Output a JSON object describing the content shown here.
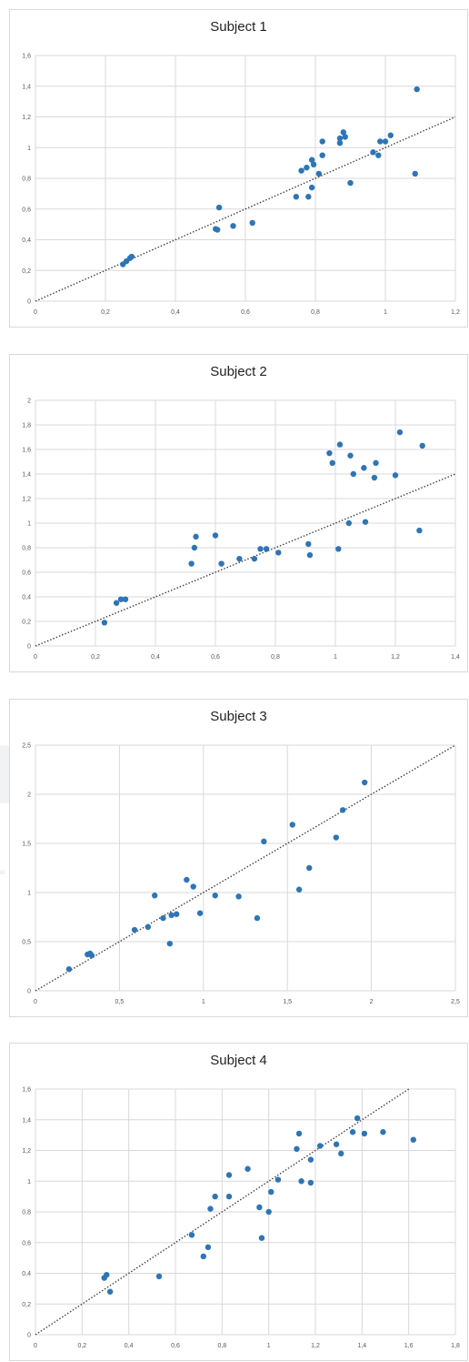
{
  "colors": {
    "point": "#2e75b6",
    "grid": "#d9d9d9",
    "diagonal": "#444444",
    "axis_text": "#595959"
  },
  "watermark": {
    "line1": "PRESS",
    "line2": "LOGY PUBLICATIONS"
  },
  "chart_data": [
    {
      "type": "scatter",
      "title": "Subject 1",
      "xlim": [
        0,
        1.2
      ],
      "ylim": [
        0,
        1.6
      ],
      "xticks": [
        "0",
        "0,2",
        "0,4",
        "0,6",
        "0,8",
        "1",
        "1,2"
      ],
      "yticks": [
        "0",
        "0,2",
        "0,4",
        "0,6",
        "0,8",
        "1",
        "1,2",
        "1,4",
        "1,6"
      ],
      "reference_line": "y = x",
      "grid": true,
      "points": [
        [
          0.25,
          0.24
        ],
        [
          0.26,
          0.26
        ],
        [
          0.27,
          0.28
        ],
        [
          0.275,
          0.29
        ],
        [
          0.515,
          0.47
        ],
        [
          0.52,
          0.465
        ],
        [
          0.525,
          0.61
        ],
        [
          0.565,
          0.49
        ],
        [
          0.62,
          0.51
        ],
        [
          0.745,
          0.68
        ],
        [
          0.76,
          0.85
        ],
        [
          0.775,
          0.87
        ],
        [
          0.78,
          0.68
        ],
        [
          0.79,
          0.92
        ],
        [
          0.79,
          0.74
        ],
        [
          0.795,
          0.89
        ],
        [
          0.81,
          0.83
        ],
        [
          0.82,
          1.04
        ],
        [
          0.82,
          0.95
        ],
        [
          0.87,
          1.06
        ],
        [
          0.87,
          1.03
        ],
        [
          0.88,
          1.1
        ],
        [
          0.885,
          1.07
        ],
        [
          0.9,
          0.77
        ],
        [
          0.965,
          0.97
        ],
        [
          0.98,
          0.95
        ],
        [
          0.985,
          1.04
        ],
        [
          1.0,
          1.04
        ],
        [
          1.015,
          1.08
        ],
        [
          1.085,
          0.83
        ],
        [
          1.09,
          1.38
        ]
      ]
    },
    {
      "type": "scatter",
      "title": "Subject 2",
      "xlim": [
        0,
        1.4
      ],
      "ylim": [
        0,
        2.0
      ],
      "xticks": [
        "0",
        "0,2",
        "0,4",
        "0,6",
        "0,8",
        "1",
        "1,2",
        "1,4"
      ],
      "yticks": [
        "0",
        "0,2",
        "0,4",
        "0,6",
        "0,8",
        "1",
        "1,2",
        "1,4",
        "1,6",
        "1,8",
        "2"
      ],
      "reference_line": "y = x",
      "grid": true,
      "points": [
        [
          0.23,
          0.19
        ],
        [
          0.27,
          0.35
        ],
        [
          0.285,
          0.38
        ],
        [
          0.3,
          0.38
        ],
        [
          0.52,
          0.67
        ],
        [
          0.53,
          0.8
        ],
        [
          0.535,
          0.89
        ],
        [
          0.6,
          0.9
        ],
        [
          0.62,
          0.67
        ],
        [
          0.68,
          0.71
        ],
        [
          0.73,
          0.71
        ],
        [
          0.75,
          0.79
        ],
        [
          0.77,
          0.79
        ],
        [
          0.81,
          0.76
        ],
        [
          0.91,
          0.83
        ],
        [
          0.915,
          0.74
        ],
        [
          0.98,
          1.57
        ],
        [
          0.99,
          1.49
        ],
        [
          1.01,
          0.79
        ],
        [
          1.015,
          1.64
        ],
        [
          1.045,
          1.0
        ],
        [
          1.05,
          1.55
        ],
        [
          1.06,
          1.4
        ],
        [
          1.095,
          1.45
        ],
        [
          1.1,
          1.01
        ],
        [
          1.13,
          1.37
        ],
        [
          1.135,
          1.49
        ],
        [
          1.2,
          1.39
        ],
        [
          1.215,
          1.74
        ],
        [
          1.28,
          0.94
        ],
        [
          1.29,
          1.63
        ]
      ]
    },
    {
      "type": "scatter",
      "title": "Subject 3",
      "xlim": [
        0,
        2.5
      ],
      "ylim": [
        0,
        2.5
      ],
      "xticks": [
        "0",
        "0,5",
        "1",
        "1,5",
        "2",
        "2,5"
      ],
      "yticks": [
        "0",
        "0,5",
        "1",
        "1,5",
        "2",
        "2,5"
      ],
      "reference_line": "y = x",
      "grid": true,
      "points": [
        [
          0.2,
          0.22
        ],
        [
          0.31,
          0.37
        ],
        [
          0.325,
          0.38
        ],
        [
          0.335,
          0.36
        ],
        [
          0.59,
          0.62
        ],
        [
          0.67,
          0.65
        ],
        [
          0.71,
          0.97
        ],
        [
          0.76,
          0.74
        ],
        [
          0.8,
          0.48
        ],
        [
          0.81,
          0.77
        ],
        [
          0.84,
          0.78
        ],
        [
          0.9,
          1.13
        ],
        [
          0.94,
          1.06
        ],
        [
          0.98,
          0.79
        ],
        [
          1.07,
          0.97
        ],
        [
          1.21,
          0.96
        ],
        [
          1.32,
          0.74
        ],
        [
          1.36,
          1.52
        ],
        [
          1.53,
          1.69
        ],
        [
          1.57,
          1.03
        ],
        [
          1.63,
          1.25
        ],
        [
          1.79,
          1.56
        ],
        [
          1.83,
          1.84
        ],
        [
          1.96,
          2.12
        ]
      ]
    },
    {
      "type": "scatter",
      "title": "Subject 4",
      "xlim": [
        0,
        1.8
      ],
      "ylim": [
        0,
        1.6
      ],
      "xticks": [
        "0",
        "0,2",
        "0,4",
        "0,6",
        "0,8",
        "1",
        "1,2",
        "1,4",
        "1,6",
        "1,8"
      ],
      "yticks": [
        "0",
        "0,2",
        "0,4",
        "0,6",
        "0,8",
        "1",
        "1,2",
        "1,4",
        "1,6"
      ],
      "reference_line": "y = x",
      "grid": true,
      "points": [
        [
          0.295,
          0.37
        ],
        [
          0.305,
          0.39
        ],
        [
          0.32,
          0.28
        ],
        [
          0.53,
          0.38
        ],
        [
          0.67,
          0.65
        ],
        [
          0.72,
          0.51
        ],
        [
          0.74,
          0.57
        ],
        [
          0.75,
          0.82
        ],
        [
          0.77,
          0.9
        ],
        [
          0.83,
          0.9
        ],
        [
          0.83,
          1.04
        ],
        [
          0.91,
          1.08
        ],
        [
          0.96,
          0.83
        ],
        [
          0.97,
          0.63
        ],
        [
          1.0,
          0.8
        ],
        [
          1.01,
          0.93
        ],
        [
          1.04,
          1.01
        ],
        [
          1.12,
          1.21
        ],
        [
          1.13,
          1.31
        ],
        [
          1.14,
          1.0
        ],
        [
          1.18,
          1.14
        ],
        [
          1.18,
          0.99
        ],
        [
          1.22,
          1.23
        ],
        [
          1.29,
          1.24
        ],
        [
          1.31,
          1.18
        ],
        [
          1.36,
          1.32
        ],
        [
          1.38,
          1.41
        ],
        [
          1.41,
          1.31
        ],
        [
          1.49,
          1.32
        ],
        [
          1.62,
          1.27
        ]
      ]
    }
  ]
}
